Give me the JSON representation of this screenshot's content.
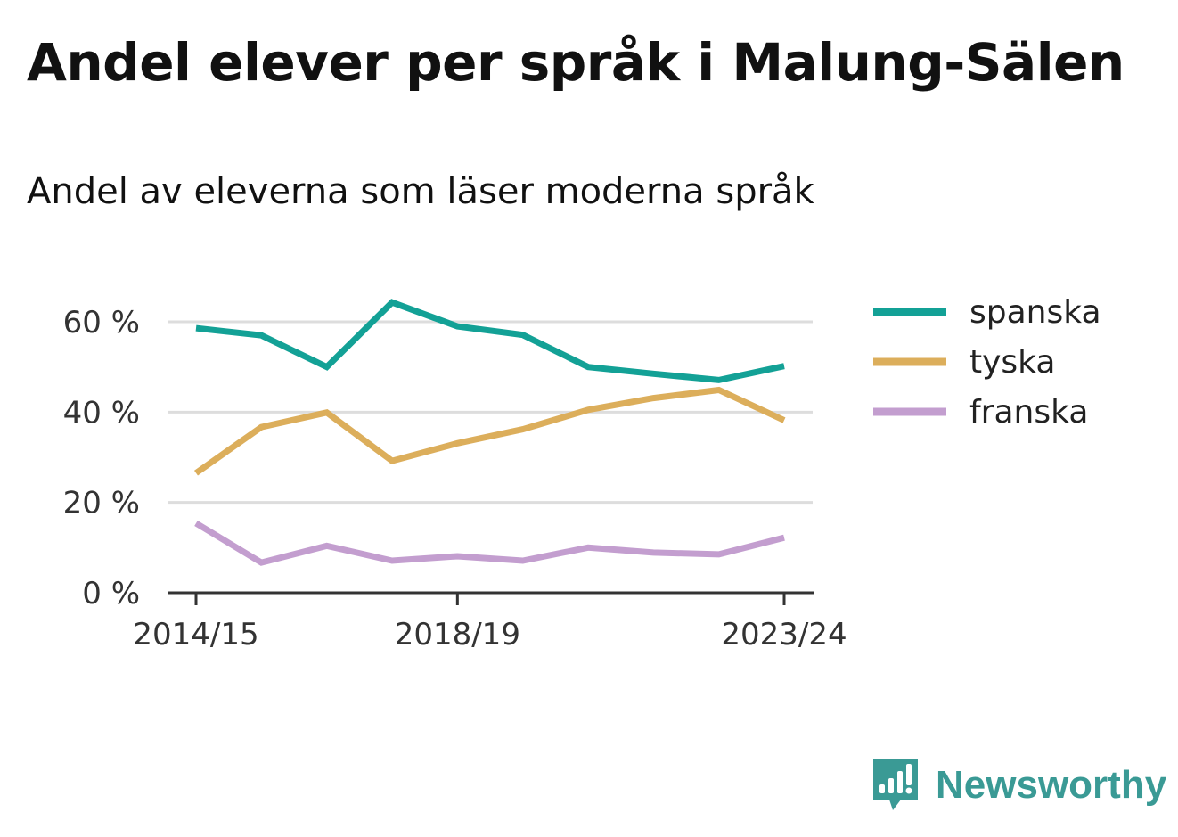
{
  "header": {
    "title": "Andel elever per språk i Malung-Sälen",
    "subtitle": "Andel av eleverna som läser moderna språk"
  },
  "brand": {
    "name": "Newsworthy",
    "icon": "newsworthy-logo-icon",
    "color": "#3a9a95"
  },
  "chart_data": {
    "type": "line",
    "title": "Andel elever per språk i Malung-Sälen",
    "subtitle": "Andel av eleverna som läser moderna språk",
    "xlabel": "",
    "ylabel": "",
    "x": [
      "2014/15",
      "2015/16",
      "2016/17",
      "2017/18",
      "2018/19",
      "2019/20",
      "2020/21",
      "2021/22",
      "2022/23",
      "2023/24"
    ],
    "x_tick_labels": [
      "2014/15",
      "2018/19",
      "2023/24"
    ],
    "y_ticks": [
      0,
      20,
      40,
      60
    ],
    "y_tick_labels": [
      "0 %",
      "20 %",
      "40 %",
      "60 %"
    ],
    "ylim": [
      0,
      70
    ],
    "grid": true,
    "legend_position": "right",
    "series": [
      {
        "name": "spanska",
        "color": "#13a196",
        "values": [
          58.6,
          57.0,
          50.0,
          64.3,
          59.0,
          57.1,
          50.0,
          48.5,
          47.1,
          50.2
        ]
      },
      {
        "name": "tyska",
        "color": "#dcae5b",
        "values": [
          26.5,
          36.7,
          39.9,
          29.2,
          33.1,
          36.2,
          40.5,
          43.1,
          44.9,
          38.2
        ]
      },
      {
        "name": "franska",
        "color": "#c39ecf",
        "values": [
          15.4,
          6.7,
          10.4,
          7.1,
          8.1,
          7.1,
          10.0,
          8.9,
          8.5,
          12.2
        ]
      }
    ]
  }
}
